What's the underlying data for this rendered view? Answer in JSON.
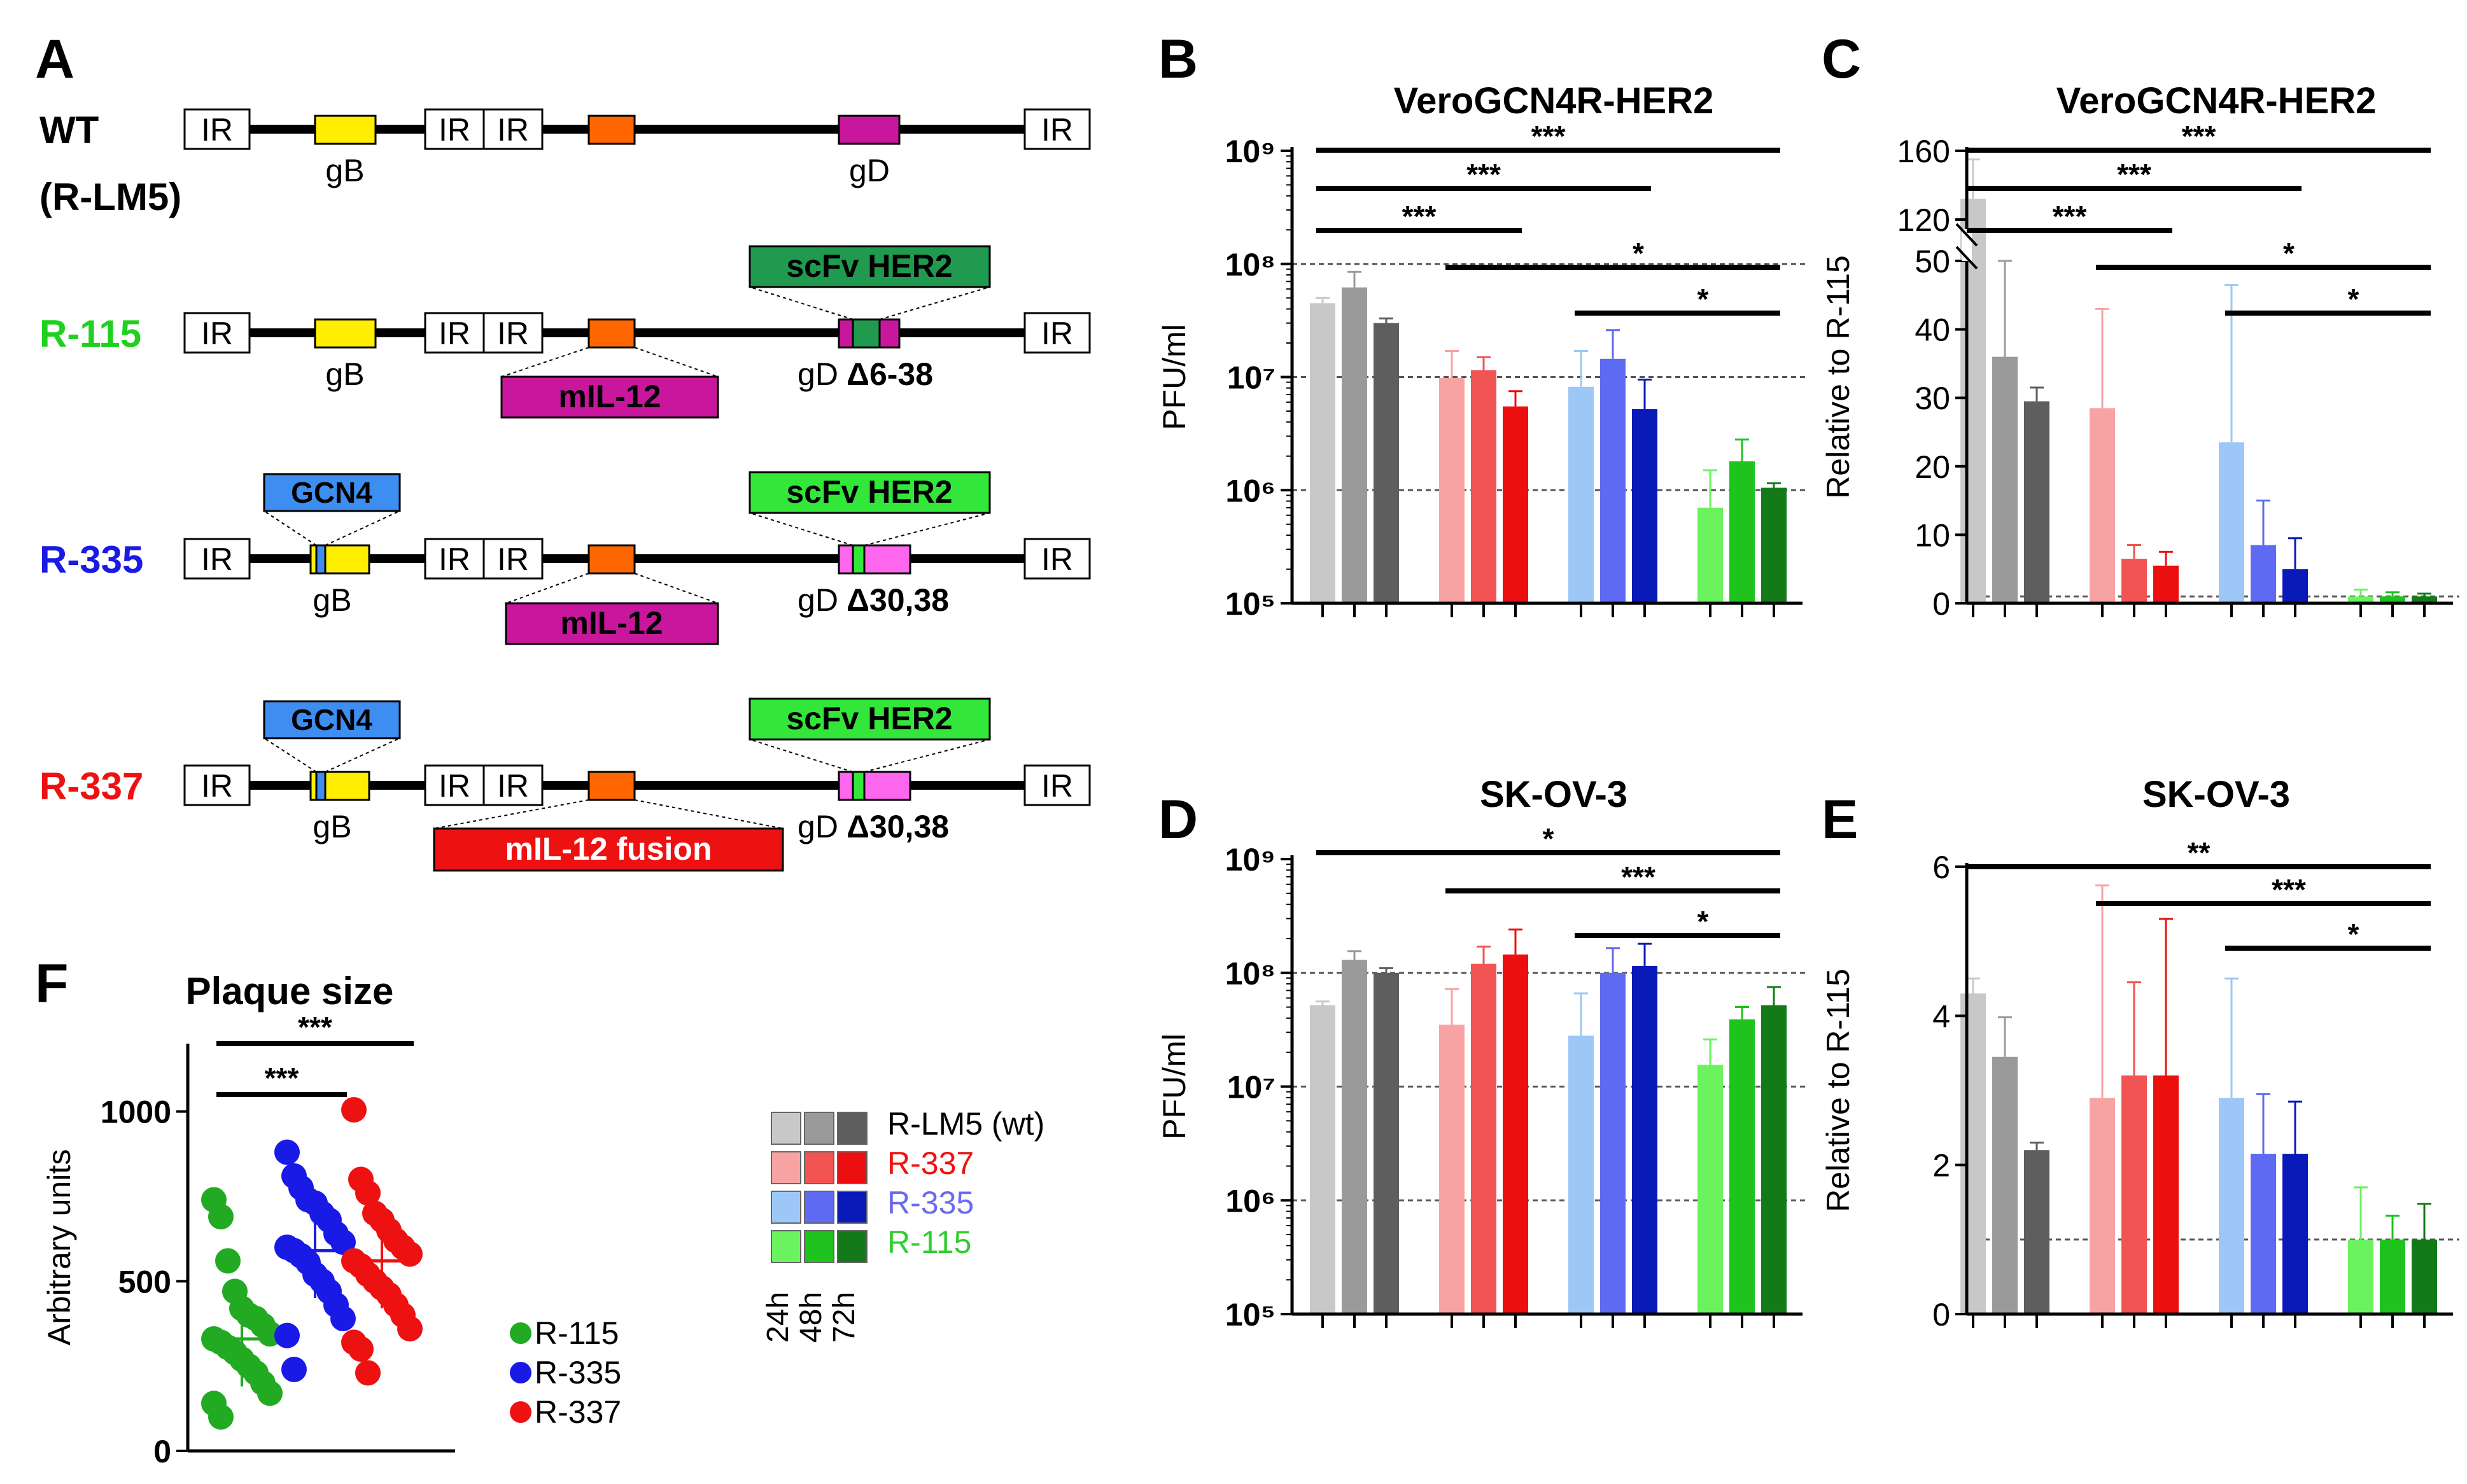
{
  "colors": {
    "wt": [
      "#c8c8c8",
      "#9a9a9a",
      "#5e5e5e"
    ],
    "r337": [
      "#f8a3a3",
      "#f25353",
      "#ec0f0f"
    ],
    "r335": [
      "#9cc7f6",
      "#5f6af2",
      "#0a1ab8"
    ],
    "r115": [
      "#6bf25f",
      "#1ec31e",
      "#147a19"
    ],
    "label_wt": "#000000",
    "label_r115": "#1fd11f",
    "label_r335": "#1a1ae6",
    "label_r337": "#ee1111",
    "yellow": "#ffee00",
    "orange": "#ff6600",
    "magenta": "#c8179c",
    "dkgreen": "#1f9a4e",
    "ltgreen": "#33e63a",
    "pink": "#ff66ee",
    "gcn4": "#3d8ef0",
    "red": "#ee1111",
    "darkline": "#000000"
  },
  "panels": {
    "A": {
      "letter": "A",
      "rows": [
        {
          "name_line1": "WT",
          "name_line2": "(R-LM5)",
          "gB": "gB",
          "gD": "gD",
          "ir": "IR"
        },
        {
          "name": "R-115",
          "gB": "gB",
          "gD": "gD",
          "delta": "Δ6-38",
          "scfv": "scFv HER2",
          "il12": "mIL-12",
          "ir": "IR"
        },
        {
          "name": "R-335",
          "gB": "gB",
          "gD": "gD",
          "delta": "Δ30,38",
          "scfv": "scFv HER2",
          "gcn4": "GCN4",
          "il12": "mIL-12",
          "ir": "IR"
        },
        {
          "name": "R-337",
          "gB": "gB",
          "gD": "gD",
          "delta": "Δ30,38",
          "scfv": "scFv HER2",
          "gcn4": "GCN4",
          "il12": "mIL-12 fusion",
          "ir": "IR"
        }
      ]
    },
    "F": {
      "letter": "F"
    },
    "legend": {
      "entries": [
        "R-LM5 (wt)",
        "R-337",
        "R-335",
        "R-115"
      ],
      "times": [
        "24h",
        "48h",
        "72h"
      ]
    }
  },
  "chart_data": [
    {
      "id": "B",
      "type": "bar",
      "scale": "log",
      "title": "VeroGCN4R-HER2",
      "ylabel": "PFU/ml",
      "yticks": [
        "10⁹",
        "10⁸",
        "10⁷",
        "10⁶",
        "10⁵"
      ],
      "ylim": [
        100000,
        1000000000
      ],
      "groups": [
        "R-LM5 (wt)",
        "R-337",
        "R-335",
        "R-115"
      ],
      "timepoints": [
        "24h",
        "48h",
        "72h"
      ],
      "values": [
        [
          45000000,
          62000000,
          30000000
        ],
        [
          9800000,
          11500000,
          5500000
        ],
        [
          8200000,
          14500000,
          5200000
        ],
        [
          700000,
          1800000,
          1050000
        ]
      ],
      "errors": [
        [
          50000000,
          85000000,
          33000000
        ],
        [
          17000000,
          15000000,
          7500000
        ],
        [
          17000000,
          26000000,
          9500000
        ],
        [
          1500000,
          2800000,
          1150000
        ]
      ],
      "reflines": [
        100000000,
        10000000,
        1000000
      ],
      "significance": [
        {
          "from": 0,
          "to": 3,
          "label": "***"
        },
        {
          "from": 0,
          "to": 2,
          "label": "***"
        },
        {
          "from": 0,
          "to": 1,
          "label": "***"
        },
        {
          "from": 1,
          "to": 3,
          "label": "*"
        },
        {
          "from": 2,
          "to": 3,
          "label": "*"
        }
      ]
    },
    {
      "id": "C",
      "type": "bar",
      "scale": "broken",
      "title": "VeroGCN4R-HER2",
      "ylabel": "Relative to R-115",
      "yticks": [
        "0",
        "10",
        "20",
        "30",
        "40",
        "50",
        "120",
        "160"
      ],
      "ylim": [
        0,
        160
      ],
      "groups": [
        "R-LM5 (wt)",
        "R-337",
        "R-335",
        "R-115"
      ],
      "timepoints": [
        "24h",
        "48h",
        "72h"
      ],
      "values": [
        [
          132,
          36,
          29.5
        ],
        [
          28.5,
          6.5,
          5.5
        ],
        [
          23.5,
          8.5,
          5
        ],
        [
          1,
          1,
          1
        ]
      ],
      "errors": [
        [
          155,
          50,
          31.5
        ],
        [
          43,
          8.5,
          7.5
        ],
        [
          46.5,
          15,
          9.5
        ],
        [
          2,
          1.6,
          1.4
        ]
      ],
      "reflines": [
        1
      ],
      "significance": [
        {
          "from": 0,
          "to": 3,
          "label": "***"
        },
        {
          "from": 0,
          "to": 2,
          "label": "***"
        },
        {
          "from": 0,
          "to": 1,
          "label": "***"
        },
        {
          "from": 1,
          "to": 3,
          "label": "*"
        },
        {
          "from": 2,
          "to": 3,
          "label": "*"
        }
      ]
    },
    {
      "id": "D",
      "type": "bar",
      "scale": "log",
      "title": "SK-OV-3",
      "ylabel": "PFU/ml",
      "yticks": [
        "10⁹",
        "10⁸",
        "10⁷",
        "10⁶",
        "10⁵"
      ],
      "ylim": [
        100000,
        1000000000
      ],
      "groups": [
        "R-LM5 (wt)",
        "R-337",
        "R-335",
        "R-115"
      ],
      "timepoints": [
        "24h",
        "48h",
        "72h"
      ],
      "values": [
        [
          52000000,
          130000000,
          100000000
        ],
        [
          35000000,
          120000000,
          145000000
        ],
        [
          28000000,
          100000000,
          115000000
        ],
        [
          15500000,
          39000000,
          52000000
        ]
      ],
      "errors": [
        [
          56000000,
          155000000,
          110000000
        ],
        [
          72000000,
          170000000,
          240000000
        ],
        [
          66000000,
          165000000,
          180000000
        ],
        [
          26000000,
          50000000,
          75000000
        ]
      ],
      "reflines": [
        100000000,
        10000000,
        1000000
      ],
      "significance": [
        {
          "from": 0,
          "to": 3,
          "label": "*"
        },
        {
          "from": 1,
          "to": 3,
          "label": "***"
        },
        {
          "from": 2,
          "to": 3,
          "label": "*"
        }
      ]
    },
    {
      "id": "E",
      "type": "bar",
      "scale": "linear",
      "title": "SK-OV-3",
      "ylabel": "Relative to R-115",
      "yticks": [
        "0",
        "2",
        "4",
        "6"
      ],
      "ylim": [
        0,
        6
      ],
      "groups": [
        "R-LM5 (wt)",
        "R-337",
        "R-335",
        "R-115"
      ],
      "timepoints": [
        "24h",
        "48h",
        "72h"
      ],
      "values": [
        [
          4.3,
          3.45,
          2.2
        ],
        [
          2.9,
          3.2,
          3.2
        ],
        [
          2.9,
          2.15,
          2.15
        ],
        [
          1,
          1,
          1
        ]
      ],
      "errors": [
        [
          4.5,
          3.98,
          2.3
        ],
        [
          5.75,
          4.45,
          5.3
        ],
        [
          4.5,
          2.95,
          2.85
        ],
        [
          1.7,
          1.32,
          1.48
        ]
      ],
      "reflines": [
        1
      ],
      "significance": [
        {
          "from": 0,
          "to": 3,
          "label": "**"
        },
        {
          "from": 1,
          "to": 3,
          "label": "***"
        },
        {
          "from": 2,
          "to": 3,
          "label": "*"
        }
      ]
    },
    {
      "id": "F",
      "type": "scatter",
      "title": "Plaque size",
      "ylabel": "Arbitrary units",
      "yticks": [
        "0",
        "500",
        "1000"
      ],
      "ylim": [
        0,
        1200
      ],
      "series": [
        {
          "name": "R-115",
          "mean": 330,
          "points": [
            740,
            690,
            560,
            470,
            420,
            400,
            390,
            370,
            345,
            330,
            320,
            305,
            290,
            270,
            250,
            230,
            200,
            170,
            140,
            100
          ]
        },
        {
          "name": "R-335",
          "mean": 590,
          "points": [
            880,
            810,
            775,
            740,
            730,
            700,
            680,
            640,
            615,
            600,
            590,
            575,
            555,
            520,
            500,
            470,
            430,
            390,
            340,
            240
          ]
        },
        {
          "name": "R-337",
          "mean": 560,
          "points": [
            1005,
            800,
            760,
            700,
            680,
            650,
            620,
            600,
            580,
            560,
            545,
            520,
            500,
            480,
            460,
            430,
            400,
            360,
            320,
            300,
            230
          ]
        }
      ],
      "significance": [
        {
          "from": 0,
          "to": 1,
          "label": "***"
        },
        {
          "from": 0,
          "to": 2,
          "label": "***"
        }
      ]
    }
  ]
}
